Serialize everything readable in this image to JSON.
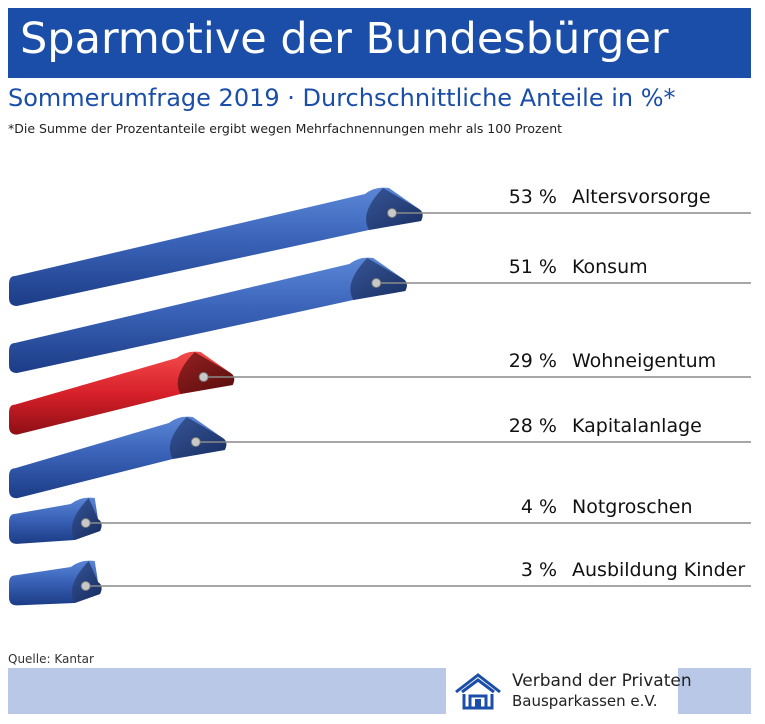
{
  "title": "Sparmotive der Bundesbürger",
  "subtitle": "Sommerumfrage 2019 · Durchschnittliche Anteile in %*",
  "note": "*Die Summe der Prozentanteile ergibt wegen Mehrfachnennungen mehr als 100 Prozent",
  "source": "Quelle: Kantar",
  "logo": {
    "line1": "Verband der Privaten",
    "line2": "Bausparkassen e.V.",
    "icon": "house-logo-icon"
  },
  "colors": {
    "brand_blue": "#1b4ea8",
    "bar_blue": "#3a5fb0",
    "bar_red": "#d8202a",
    "footer_band": "#b9c8e6"
  },
  "chart_data": {
    "type": "bar",
    "orientation": "horizontal",
    "unit": "%",
    "categories": [
      "Altersvorsorge",
      "Konsum",
      "Wohneigentum",
      "Kapitalanlage",
      "Notgroschen",
      "Ausbildung Kinder"
    ],
    "values": [
      53,
      51,
      29,
      28,
      4,
      3
    ],
    "value_labels": [
      "53 %",
      "51 %",
      "29 %",
      "28 %",
      "4 %",
      "3 %"
    ],
    "highlight": "Wohneigentum"
  }
}
